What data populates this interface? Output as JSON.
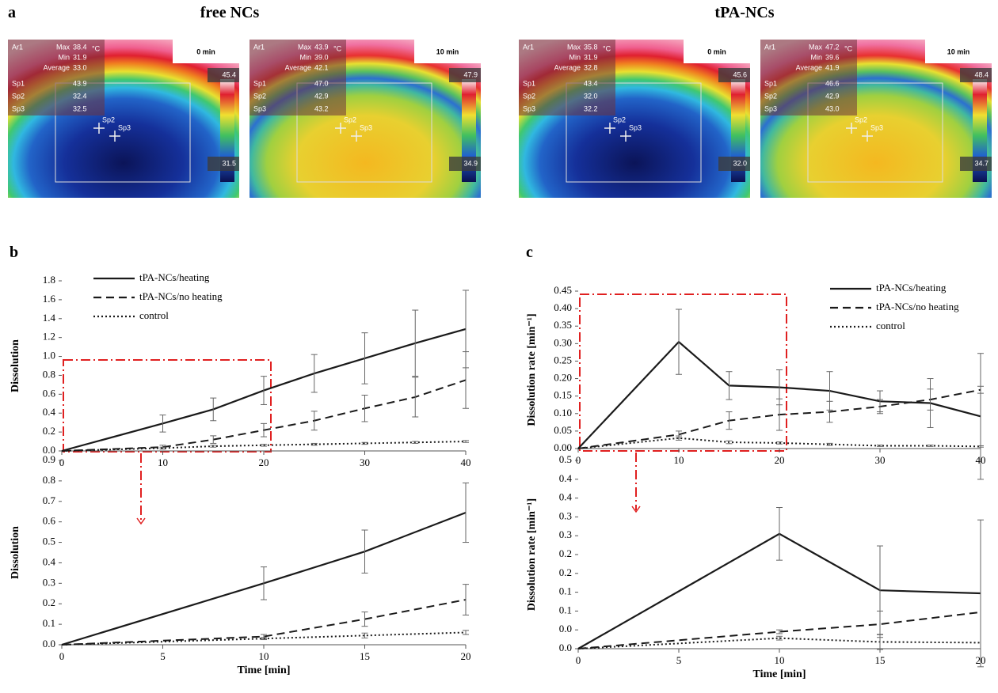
{
  "figure": {
    "panel_label": "a",
    "titles": [
      "free NCs",
      "tPA-NCs"
    ],
    "images": [
      {
        "time": "0 min",
        "scale_max": "45.4",
        "scale_min": "31.5",
        "unit": "°C",
        "area": "Ar1",
        "stats": [
          {
            "label": "Max",
            "value": "38.4"
          },
          {
            "label": "Min",
            "value": "31.9"
          },
          {
            "label": "Average",
            "value": "33.0"
          }
        ],
        "spots": [
          {
            "label": "Sp1",
            "value": "43.9"
          },
          {
            "label": "Sp2",
            "value": "32.4"
          },
          {
            "label": "Sp3",
            "value": "32.5"
          }
        ]
      },
      {
        "time": "10 min",
        "scale_max": "47.9",
        "scale_min": "34.9",
        "unit": "°C",
        "area": "Ar1",
        "stats": [
          {
            "label": "Max",
            "value": "43.9"
          },
          {
            "label": "Min",
            "value": "39.0"
          },
          {
            "label": "Average",
            "value": "42.1"
          }
        ],
        "spots": [
          {
            "label": "Sp1",
            "value": "47.0"
          },
          {
            "label": "Sp2",
            "value": "42.9"
          },
          {
            "label": "Sp3",
            "value": "43.2"
          }
        ]
      },
      {
        "time": "0 min",
        "scale_max": "45.6",
        "scale_min": "32.0",
        "unit": "°C",
        "area": "Ar1",
        "stats": [
          {
            "label": "Max",
            "value": "35.8"
          },
          {
            "label": "Min",
            "value": "31.9"
          },
          {
            "label": "Average",
            "value": "32.8"
          }
        ],
        "spots": [
          {
            "label": "Sp1",
            "value": "43.4"
          },
          {
            "label": "Sp2",
            "value": "32.0"
          },
          {
            "label": "Sp3",
            "value": "32.2"
          }
        ]
      },
      {
        "time": "10 min",
        "scale_max": "48.4",
        "scale_min": "34.7",
        "unit": "°C",
        "area": "Ar1",
        "stats": [
          {
            "label": "Max",
            "value": "47.2"
          },
          {
            "label": "Min",
            "value": "39.6"
          },
          {
            "label": "Average",
            "value": "41.9"
          }
        ],
        "spots": [
          {
            "label": "Sp1",
            "value": "46.6"
          },
          {
            "label": "Sp2",
            "value": "42.9"
          },
          {
            "label": "Sp3",
            "value": "43.0"
          }
        ]
      }
    ]
  },
  "chart_data": [
    {
      "type": "line",
      "panel": "b",
      "ylabel": "Dissolution",
      "legend": "upper-left",
      "x": [
        0,
        10,
        15,
        20,
        25,
        30,
        35,
        40
      ],
      "xlim": [
        0,
        40
      ],
      "xticks": [
        0,
        10,
        20,
        30,
        40
      ],
      "ylim": [
        0,
        1.8
      ],
      "yticks": [
        {
          "value": 0,
          "label": "0.0"
        },
        0.2,
        0.4,
        0.6,
        0.8,
        {
          "value": 1,
          "label": "1.0"
        },
        1.2,
        1.4,
        1.6,
        1.8
      ],
      "series": [
        {
          "name": "tPA-NCs/heating",
          "color": "#1a1a1a",
          "dash": "solid",
          "values": [
            0,
            0.29,
            0.44,
            0.64,
            0.82,
            0.98,
            1.14,
            1.29
          ],
          "errors": [
            null,
            0.09,
            0.12,
            0.15,
            0.2,
            0.27,
            0.35,
            0.41
          ]
        },
        {
          "name": "tPA-NCs/no heating",
          "color": "#1a1a1a",
          "dash": "dashed",
          "values": [
            0,
            0.04,
            0.12,
            0.22,
            0.32,
            0.45,
            0.57,
            0.75
          ],
          "errors": [
            null,
            0.02,
            0.04,
            0.07,
            0.1,
            0.14,
            0.21,
            0.3
          ]
        },
        {
          "name": "control",
          "color": "#1a1a1a",
          "dash": "dotted",
          "values": [
            0,
            0.03,
            0.05,
            0.06,
            0.07,
            0.08,
            0.09,
            0.1
          ],
          "errors": [
            null,
            0.01,
            0.01,
            0.01,
            0.01,
            0.01,
            0.01,
            0.01
          ]
        }
      ]
    },
    {
      "type": "line",
      "ylabel": "Dissolution",
      "xlabel": "Time [min]",
      "x": [
        0,
        10,
        15,
        20
      ],
      "xlim": [
        0,
        20
      ],
      "xticks": [
        0,
        5,
        10,
        15,
        20
      ],
      "ylim": [
        0,
        0.9
      ],
      "yticks": [
        {
          "value": 0,
          "label": "0.0"
        },
        0.1,
        0.2,
        0.3,
        0.4,
        0.5,
        0.6,
        0.7,
        0.8,
        0.9
      ],
      "series": [
        {
          "color": "#1a1a1a",
          "dash": "solid",
          "values": [
            0,
            0.3,
            0.455,
            0.645
          ],
          "errors": [
            null,
            0.08,
            0.105,
            0.145
          ]
        },
        {
          "color": "#1a1a1a",
          "dash": "dashed",
          "values": [
            0,
            0.04,
            0.125,
            0.22
          ],
          "errors": [
            null,
            0.01,
            0.035,
            0.075
          ]
        },
        {
          "color": "#1a1a1a",
          "dash": "dotted",
          "values": [
            0,
            0.03,
            0.045,
            0.06
          ],
          "errors": [
            null,
            0.005,
            0.012,
            0.01
          ]
        }
      ]
    },
    {
      "type": "line",
      "panel": "c",
      "ylabel": "Dissolution  rate [min⁻¹]",
      "legend": "upper-right",
      "x": [
        0,
        10,
        15,
        20,
        25,
        30,
        35,
        40
      ],
      "xlim": [
        0,
        40
      ],
      "xticks": [
        0,
        10,
        20,
        30,
        40
      ],
      "ylim": [
        0,
        0.45
      ],
      "yticks": [
        {
          "value": 0,
          "label": "0.00"
        },
        0.05,
        {
          "value": 0.1,
          "label": "0.10"
        },
        0.15,
        {
          "value": 0.2,
          "label": "0.20"
        },
        0.25,
        {
          "value": 0.3,
          "label": "0.30"
        },
        0.35,
        {
          "value": 0.4,
          "label": "0.40"
        },
        0.45
      ],
      "series": [
        {
          "name": "tPA-NCs/heating",
          "color": "#1a1a1a",
          "dash": "solid",
          "values": [
            0,
            0.305,
            0.18,
            0.175,
            0.165,
            0.135,
            0.13,
            0.092
          ],
          "errors": [
            null,
            0.093,
            0.04,
            0.05,
            0.055,
            0.03,
            0.07,
            0.18
          ]
        },
        {
          "name": "tPA-NCs/no heating",
          "color": "#1a1a1a",
          "dash": "dashed",
          "values": [
            0,
            0.04,
            0.08,
            0.097,
            0.105,
            0.12,
            0.14,
            0.168
          ],
          "errors": [
            null,
            0.01,
            0.025,
            0.045,
            0.03,
            0.02,
            0.03,
            0.01
          ]
        },
        {
          "name": "control",
          "color": "#1a1a1a",
          "dash": "dotted",
          "values": [
            0,
            0.03,
            0.018,
            0.016,
            0.012,
            0.008,
            0.008,
            0.006
          ],
          "errors": [
            null,
            0.006,
            0.004,
            0.003,
            0.003,
            0.002,
            0.002,
            0.002
          ]
        }
      ]
    },
    {
      "type": "line",
      "ylabel": "Dissolution rate [min⁻¹]",
      "xlabel": "Time [min]",
      "x": [
        0,
        10,
        15,
        20
      ],
      "xlim": [
        0,
        20
      ],
      "xticks": [
        0,
        5,
        10,
        15,
        20
      ],
      "ylim": [
        0,
        0.5
      ],
      "yticks": [
        {
          "value": 0,
          "label": "0.0"
        },
        {
          "value": 0.05,
          "label": "0.0"
        },
        0.1,
        {
          "value": 0.15,
          "label": "0.1"
        },
        0.2,
        {
          "value": 0.25,
          "label": "0.2"
        },
        0.3,
        {
          "value": 0.35,
          "label": "0.3"
        },
        0.4,
        {
          "value": 0.45,
          "label": "0.4"
        },
        0.5
      ],
      "series": [
        {
          "color": "#1a1a1a",
          "dash": "solid",
          "values": [
            0,
            0.305,
            0.155,
            0.147
          ],
          "errors": [
            null,
            0.07,
            0.118,
            0.195
          ]
        },
        {
          "color": "#1a1a1a",
          "dash": "dashed",
          "values": [
            0,
            0.045,
            0.065,
            0.097
          ],
          "errors": [
            null,
            0.005,
            0.035,
            null
          ]
        },
        {
          "color": "#1a1a1a",
          "dash": "dotted",
          "values": [
            0,
            0.028,
            0.018,
            0.016
          ],
          "errors": [
            null,
            0.005,
            0.02,
            null
          ]
        }
      ]
    }
  ]
}
